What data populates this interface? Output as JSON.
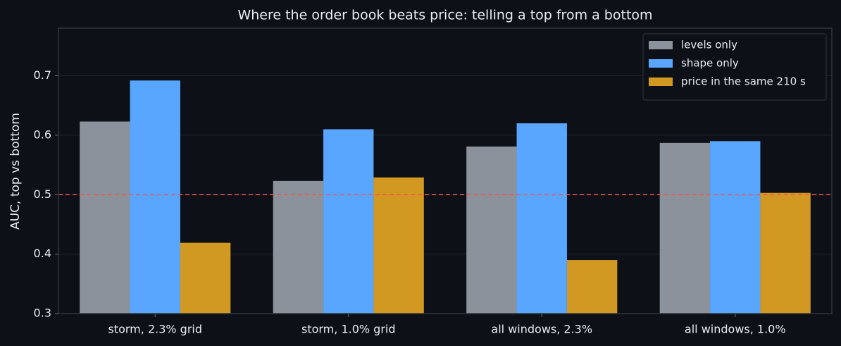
{
  "chart_data": {
    "type": "bar",
    "title": "Where the order book beats price: telling a top from a bottom",
    "y_label": "AUC, top vs bottom",
    "categories": [
      "storm, 2.3% grid",
      "storm, 1.0% grid",
      "all windows, 2.3%",
      "all windows, 1.0%"
    ],
    "series": [
      {
        "name": "levels only",
        "color": "#8b929b",
        "values": [
          0.623,
          0.523,
          0.581,
          0.587
        ]
      },
      {
        "name": "shape only",
        "color": "#58a6ff",
        "values": [
          0.692,
          0.61,
          0.62,
          0.59
        ]
      },
      {
        "name": "price in the same 210 s",
        "color": "#d29922",
        "values": [
          0.419,
          0.529,
          0.39,
          0.503
        ]
      }
    ],
    "reference_line": 0.5,
    "reference_color": "#f85149",
    "ylim": [
      0.3,
      0.78
    ],
    "yticks": [
      0.3,
      0.4,
      0.5,
      0.6,
      0.7
    ],
    "grid": true,
    "legend": "upper right"
  }
}
